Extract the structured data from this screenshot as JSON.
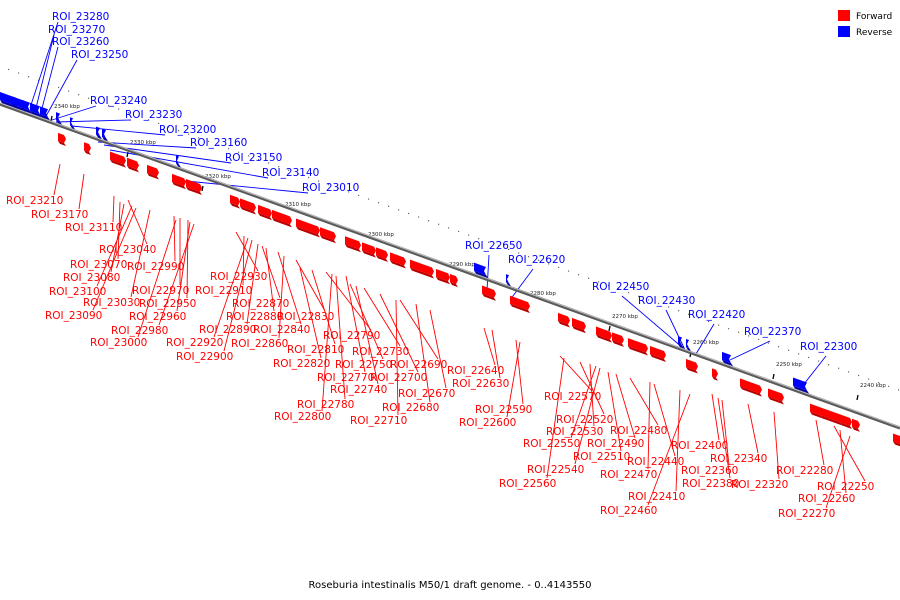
{
  "colors": {
    "forward": "#ff0000",
    "reverse": "#0000ff",
    "axis": "#7a7a7a",
    "dark_forward": "#b80000",
    "dark_reverse": "#0000a8"
  },
  "legend": {
    "forward_label": "Forward",
    "reverse_label": "Reverse"
  },
  "caption": "Roseburia intestinalis M50/1 draft genome. - 0..4143550",
  "ticks": [
    "2340 kbp",
    "2330 kbp",
    "2320 kbp",
    "2310 kbp",
    "2300 kbp",
    "2290 kbp",
    "2280 kbp",
    "2270 kbp",
    "2260 kbp",
    "2250 kbp",
    "2240 kbp"
  ],
  "reverse_labels": [
    "ROI_23280",
    "ROI_23270",
    "ROI_23260",
    "ROI_23250",
    "ROI_23240",
    "ROI_23230",
    "ROI_23200",
    "ROI_23160",
    "ROI_23150",
    "ROI_23140",
    "ROI_23010",
    "ROI_22650",
    "ROI_22620",
    "ROI_22450",
    "ROI_22430",
    "ROI_22420",
    "ROI_22370",
    "ROI_22300"
  ],
  "forward_labels": [
    "ROI_23210",
    "ROI_23170",
    "ROI_23110",
    "ROI_23040",
    "ROI_23070",
    "ROI_23080",
    "ROI_23100",
    "ROI_23090",
    "ROI_23030",
    "ROI_23000",
    "ROI_22990",
    "ROI_22970",
    "ROI_22950",
    "ROI_22960",
    "ROI_22980",
    "ROI_22930",
    "ROI_22910",
    "ROI_22920",
    "ROI_22900",
    "ROI_22890",
    "ROI_22870",
    "ROI_22880",
    "ROI_22840",
    "ROI_22860",
    "ROI_22830",
    "ROI_22820",
    "ROI_22810",
    "ROI_22790",
    "ROI_22770",
    "ROI_22780",
    "ROI_22800",
    "ROI_22750",
    "ROI_22740",
    "ROI_22730",
    "ROI_22700",
    "ROI_22710",
    "ROI_22690",
    "ROI_22680",
    "ROI_22670",
    "ROI_22640",
    "ROI_22630",
    "ROI_22590",
    "ROI_22600",
    "ROI_22570",
    "ROI_22520",
    "ROI_22530",
    "ROI_22550",
    "ROI_22540",
    "ROI_22560",
    "ROI_22510",
    "ROI_22490",
    "ROI_22480",
    "ROI_22470",
    "ROI_22440",
    "ROI_22460",
    "ROI_22410",
    "ROI_22400",
    "ROI_22380",
    "ROI_22360",
    "ROI_22340",
    "ROI_22320",
    "ROI_22280",
    "ROI_22250",
    "ROI_22260",
    "ROI_22270"
  ]
}
